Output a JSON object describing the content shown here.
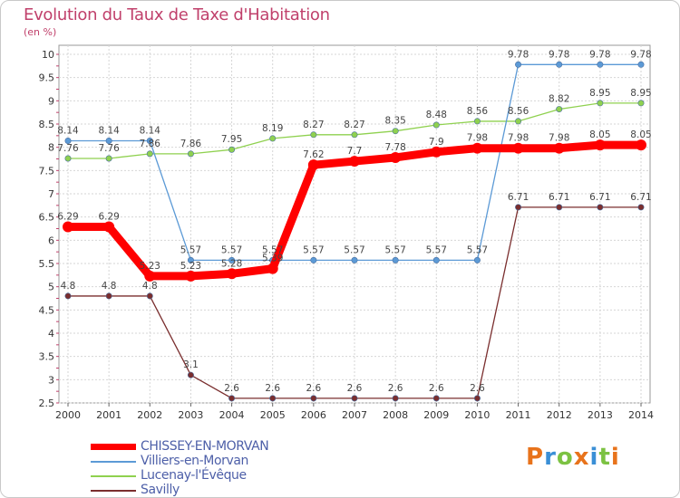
{
  "chart_data": {
    "type": "line",
    "title": "Evolution du Taux de Taxe d'Habitation",
    "subtitle": "(en %)",
    "ylim": [
      2.5,
      10
    ],
    "yticks": [
      2.5,
      3,
      3.5,
      4,
      4.5,
      5,
      5.5,
      6,
      6.5,
      7,
      7.5,
      8,
      8.5,
      9,
      9.5,
      10
    ],
    "ytick_labels": [
      "2.5",
      "3",
      "3.5",
      "4",
      "4.5",
      "5",
      "5.5",
      "6",
      "6.5",
      "7",
      "7.5",
      "8",
      "8.5",
      "9",
      "9.5",
      "10"
    ],
    "grid": true,
    "legend_position": "bottom-left",
    "x": [
      "2000",
      "2001",
      "2002",
      "2003",
      "2004",
      "2005",
      "2006",
      "2007",
      "2008",
      "2009",
      "2010",
      "2011",
      "2012",
      "2013",
      "2014"
    ],
    "series": [
      {
        "name": "CHISSEY-EN-MORVAN",
        "color": "#ff0000",
        "values": [
          6.29,
          6.29,
          5.23,
          5.23,
          5.28,
          5.39,
          7.62,
          7.7,
          7.78,
          7.9,
          7.98,
          7.98,
          7.98,
          8.05,
          8.05
        ],
        "labels": [
          "6.29",
          "6.29",
          "5.23",
          "5.23",
          "5.28",
          "5.39",
          "7.62",
          "7.7",
          "7.78",
          "7.9",
          "7.98",
          "7.98",
          "7.98",
          "8.05",
          "8.05"
        ]
      },
      {
        "name": "Villiers-en-Morvan",
        "color": "#5c9ad6",
        "values": [
          8.14,
          8.14,
          8.14,
          5.57,
          5.57,
          5.57,
          5.57,
          5.57,
          5.57,
          5.57,
          5.57,
          9.78,
          9.78,
          9.78,
          9.78
        ],
        "labels": [
          "8.14",
          "8.14",
          "8.14",
          "5.57",
          "5.57",
          "5.57",
          "5.57",
          "5.57",
          "5.57",
          "5.57",
          "5.57",
          "9.78",
          "9.78",
          "9.78",
          "9.78"
        ]
      },
      {
        "name": "Lucenay-l'Évêque",
        "color": "#8fd14f",
        "values": [
          7.76,
          7.76,
          7.86,
          7.86,
          7.95,
          8.19,
          8.27,
          8.27,
          8.35,
          8.48,
          8.56,
          8.56,
          8.82,
          8.95,
          8.95
        ],
        "labels": [
          "7.76",
          "7.76",
          "7.86",
          "7.86",
          "7.95",
          "8.19",
          "8.27",
          "8.27",
          "8.35",
          "8.48",
          "8.56",
          "8.56",
          "8.82",
          "8.95",
          "8.95"
        ]
      },
      {
        "name": "Savilly",
        "color": "#7a2e2e",
        "values": [
          4.8,
          4.8,
          4.8,
          3.1,
          2.6,
          2.6,
          2.6,
          2.6,
          2.6,
          2.6,
          2.6,
          6.71,
          6.71,
          6.71,
          6.71
        ],
        "labels": [
          "4.8",
          "4.8",
          "4.8",
          "3.1",
          "2.6",
          "2.6",
          "2.6",
          "2.6",
          "2.6",
          "2.6",
          "2.6",
          "6.71",
          "6.71",
          "6.71",
          "6.71"
        ]
      }
    ]
  },
  "brand": {
    "letters": [
      "P",
      "r",
      "o",
      "x",
      "i",
      "t",
      "i"
    ],
    "colors": [
      "#e8731b",
      "#3a8fd6",
      "#7cc242",
      "#e8731b",
      "#3a8fd6",
      "#7cc242",
      "#e8731b"
    ]
  }
}
